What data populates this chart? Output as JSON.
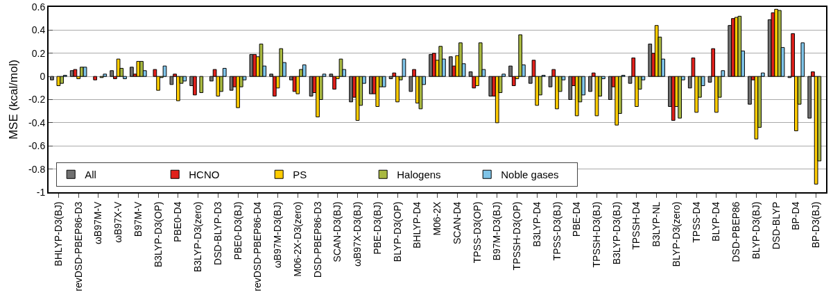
{
  "chart_data": {
    "type": "bar",
    "ylabel": "MSE (kcal/mol)",
    "categories": [
      "BHLYP-D3(BJ)",
      "revDSD-PBEP86-D3",
      "ωB97M-V",
      "ωB97X-V",
      "B97M-V",
      "B3LYP-D3(OP)",
      "PBE0-D4",
      "B3LYP-D3(zero)",
      "DSD-BLYP-D3",
      "PBE0-D3(BJ)",
      "revDSD-PBEP86-D4",
      "ωB97M-D3(BJ)",
      "M06-2X-D3(zero)",
      "DSD-PBEP86-D3",
      "SCAN-D3(BJ)",
      "ωB97X-D3(BJ)",
      "PBE-D3(BJ)",
      "BLYP-D3(OP)",
      "BHLYP-D4",
      "M06-2X",
      "SCAN-D4",
      "TPSS-D3(OP)",
      "B97M-D3(BJ)",
      "TPSSH-D3(OP)",
      "B3LYP-D4",
      "TPSS-D3(BJ)",
      "PBE-D4",
      "TPSSH-D3(BJ)",
      "B3LYP-D3(BJ)",
      "TPSSH-D4",
      "B3LYP-NL",
      "BLYP-D3(zero)",
      "TPSS-D4",
      "BLYP-D4",
      "DSD-PBEP86",
      "BLYP-D3(BJ)",
      "DSD-BLYP",
      "BP-D4",
      "BP-D3(BJ)"
    ],
    "series": [
      {
        "name": "All",
        "color": "#707070",
        "values": [
          -0.03,
          0.05,
          null,
          0.05,
          0.08,
          null,
          -0.07,
          -0.08,
          -0.04,
          -0.12,
          0.19,
          0.02,
          -0.03,
          -0.17,
          0.02,
          -0.22,
          -0.15,
          -0.02,
          -0.13,
          0.19,
          0.17,
          0.04,
          -0.17,
          0.09,
          -0.06,
          -0.09,
          -0.2,
          -0.13,
          -0.2,
          -0.06,
          0.28,
          -0.26,
          -0.1,
          -0.05,
          0.44,
          -0.24,
          0.49,
          -0.01,
          -0.36
        ]
      },
      {
        "name": "HCNO",
        "color": "#e0201b",
        "values": [
          null,
          0.06,
          -0.03,
          -0.02,
          0.02,
          0.06,
          0.02,
          -0.16,
          0.06,
          -0.09,
          0.19,
          -0.17,
          -0.13,
          -0.14,
          -0.11,
          -0.18,
          -0.15,
          0.03,
          0.06,
          0.2,
          0.09,
          -0.1,
          -0.17,
          -0.08,
          0.14,
          0.06,
          -0.08,
          0.03,
          -0.09,
          0.16,
          0.2,
          -0.38,
          0.16,
          0.24,
          0.5,
          -0.03,
          0.55,
          0.37,
          0.04
        ]
      },
      {
        "name": "PS",
        "color": "#ffcc00",
        "values": [
          -0.08,
          -0.02,
          null,
          0.15,
          0.13,
          -0.12,
          -0.21,
          null,
          -0.17,
          -0.27,
          0.17,
          -0.1,
          -0.15,
          -0.35,
          -0.02,
          -0.38,
          -0.26,
          -0.22,
          -0.23,
          0.14,
          0.18,
          -0.08,
          -0.4,
          -0.02,
          -0.25,
          -0.28,
          -0.34,
          -0.34,
          -0.42,
          -0.26,
          0.44,
          -0.26,
          -0.31,
          -0.31,
          0.51,
          -0.54,
          0.58,
          -0.47,
          -0.93
        ]
      },
      {
        "name": "Halogens",
        "color": "#a8b840",
        "values": [
          -0.06,
          0.08,
          -0.01,
          0.07,
          0.13,
          -0.01,
          -0.06,
          -0.14,
          -0.13,
          -0.09,
          0.28,
          0.24,
          0.06,
          -0.2,
          0.15,
          -0.25,
          -0.09,
          -0.03,
          -0.28,
          0.26,
          0.29,
          0.29,
          -0.14,
          0.36,
          -0.16,
          -0.13,
          -0.22,
          -0.17,
          -0.32,
          -0.11,
          0.34,
          -0.36,
          -0.18,
          -0.18,
          0.52,
          -0.44,
          0.57,
          -0.24,
          -0.73
        ]
      },
      {
        "name": "Noble gases",
        "color": "#7fc4e8",
        "values": [
          0.01,
          0.08,
          0.02,
          -0.02,
          0.05,
          0.09,
          -0.04,
          null,
          0.07,
          -0.03,
          0.09,
          0.12,
          0.1,
          0.02,
          0.06,
          -0.06,
          -0.09,
          0.15,
          -0.07,
          0.15,
          0.11,
          0.06,
          0.02,
          0.1,
          0.01,
          -0.03,
          -0.16,
          -0.02,
          0.01,
          -0.03,
          0.15,
          -0.03,
          -0.08,
          0.05,
          0.22,
          0.03,
          0.25,
          0.29,
          null
        ]
      }
    ],
    "ylim": [
      -1,
      0.6
    ],
    "yticks": [
      -1,
      -0.8,
      -0.6,
      -0.4,
      -0.2,
      0,
      0.2,
      0.4,
      0.6
    ],
    "grid": "y",
    "legend": "bottom left"
  }
}
